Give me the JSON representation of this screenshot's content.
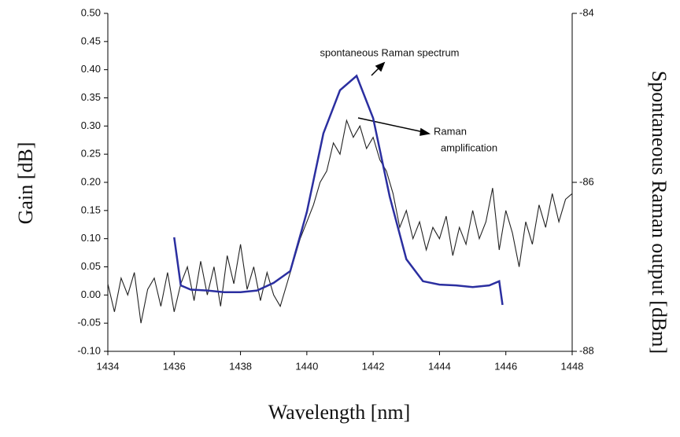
{
  "chart_data": {
    "type": "line",
    "xlabel": "Wavelength [nm]",
    "ylabel": "Gain [dB]",
    "y2label": "Spontaneous Raman output [dBm]",
    "xlim": [
      1434,
      1448
    ],
    "xticks": [
      1434,
      1436,
      1438,
      1440,
      1442,
      1444,
      1446,
      1448
    ],
    "ylim": [
      -0.1,
      0.5
    ],
    "yticks": [
      {
        "value": -0.1,
        "label": "-0.10"
      },
      -0.05,
      {
        "value": 0,
        "label": "0.00"
      },
      0.05,
      {
        "value": 0.1,
        "label": "0.10"
      },
      0.15,
      {
        "value": 0.2,
        "label": "0.20"
      },
      0.25,
      {
        "value": 0.3,
        "label": "0.30"
      },
      0.35,
      {
        "value": 0.4,
        "label": "0.40"
      },
      0.45,
      {
        "value": 0.5,
        "label": "0.50"
      }
    ],
    "y2lim": [
      -88,
      -84
    ],
    "y2ticks": [
      -88,
      -86,
      -84
    ],
    "series": [
      {
        "color": "#222222",
        "x": [
          1434,
          1434.2,
          1434.4,
          1434.6,
          1434.8,
          1435,
          1435.2,
          1435.4,
          1435.6,
          1435.8,
          1436,
          1436.2,
          1436.4,
          1436.6,
          1436.8,
          1437,
          1437.2,
          1437.4,
          1437.6,
          1437.8,
          1438,
          1438.2,
          1438.4,
          1438.6,
          1438.8,
          1439,
          1439.2,
          1439.4,
          1439.6,
          1439.8,
          1440,
          1440.2,
          1440.4,
          1440.6,
          1440.8,
          1441,
          1441.2,
          1441.4,
          1441.6,
          1441.8,
          1442,
          1442.2,
          1442.4,
          1442.6,
          1442.8,
          1443,
          1443.2,
          1443.4,
          1443.6,
          1443.8,
          1444,
          1444.2,
          1444.4,
          1444.6,
          1444.8,
          1445,
          1445.2,
          1445.4,
          1445.6,
          1445.8,
          1446,
          1446.2,
          1446.4,
          1446.6,
          1446.8,
          1447,
          1447.2,
          1447.4,
          1447.6,
          1447.8,
          1448
        ],
        "values": [
          0.02,
          -0.03,
          0.03,
          0,
          0.04,
          -0.05,
          0.01,
          0.03,
          -0.02,
          0.04,
          -0.03,
          0.02,
          0.05,
          -0.01,
          0.06,
          0,
          0.05,
          -0.02,
          0.07,
          0.02,
          0.09,
          0.01,
          0.05,
          -0.01,
          0.04,
          0,
          -0.02,
          0.02,
          0.06,
          0.1,
          0.13,
          0.16,
          0.2,
          0.22,
          0.27,
          0.25,
          0.31,
          0.28,
          0.3,
          0.26,
          0.28,
          0.24,
          0.22,
          0.18,
          0.12,
          0.15,
          0.1,
          0.13,
          0.08,
          0.12,
          0.1,
          0.14,
          0.07,
          0.12,
          0.09,
          0.15,
          0.1,
          0.13,
          0.19,
          0.08,
          0.15,
          0.11,
          0.05,
          0.13,
          0.09,
          0.16,
          0.12,
          0.18,
          0.13,
          0.17,
          0.18
        ]
      },
      {
        "color": "#2b2fa0",
        "axis": "y2",
        "x": [
          1436,
          1436.2,
          1436.5,
          1437,
          1437.5,
          1438,
          1438.5,
          1439,
          1439.5,
          1440,
          1440.5,
          1441,
          1441.5,
          1442,
          1442.5,
          1443,
          1443.5,
          1444,
          1444.5,
          1445,
          1445.5,
          1445.8,
          1445.9
        ],
        "values": [
          -86.65,
          -87.22,
          -87.27,
          -87.28,
          -87.3,
          -87.3,
          -87.28,
          -87.19,
          -87.05,
          -86.35,
          -85.42,
          -84.91,
          -84.74,
          -85.24,
          -86.17,
          -86.91,
          -87.17,
          -87.21,
          -87.22,
          -87.24,
          -87.22,
          -87.17,
          -87.45
        ]
      }
    ],
    "annotations": [
      {
        "text": "spontaneous Raman spectrum"
      },
      {
        "lines": [
          "Raman",
          "amplification"
        ]
      }
    ]
  }
}
